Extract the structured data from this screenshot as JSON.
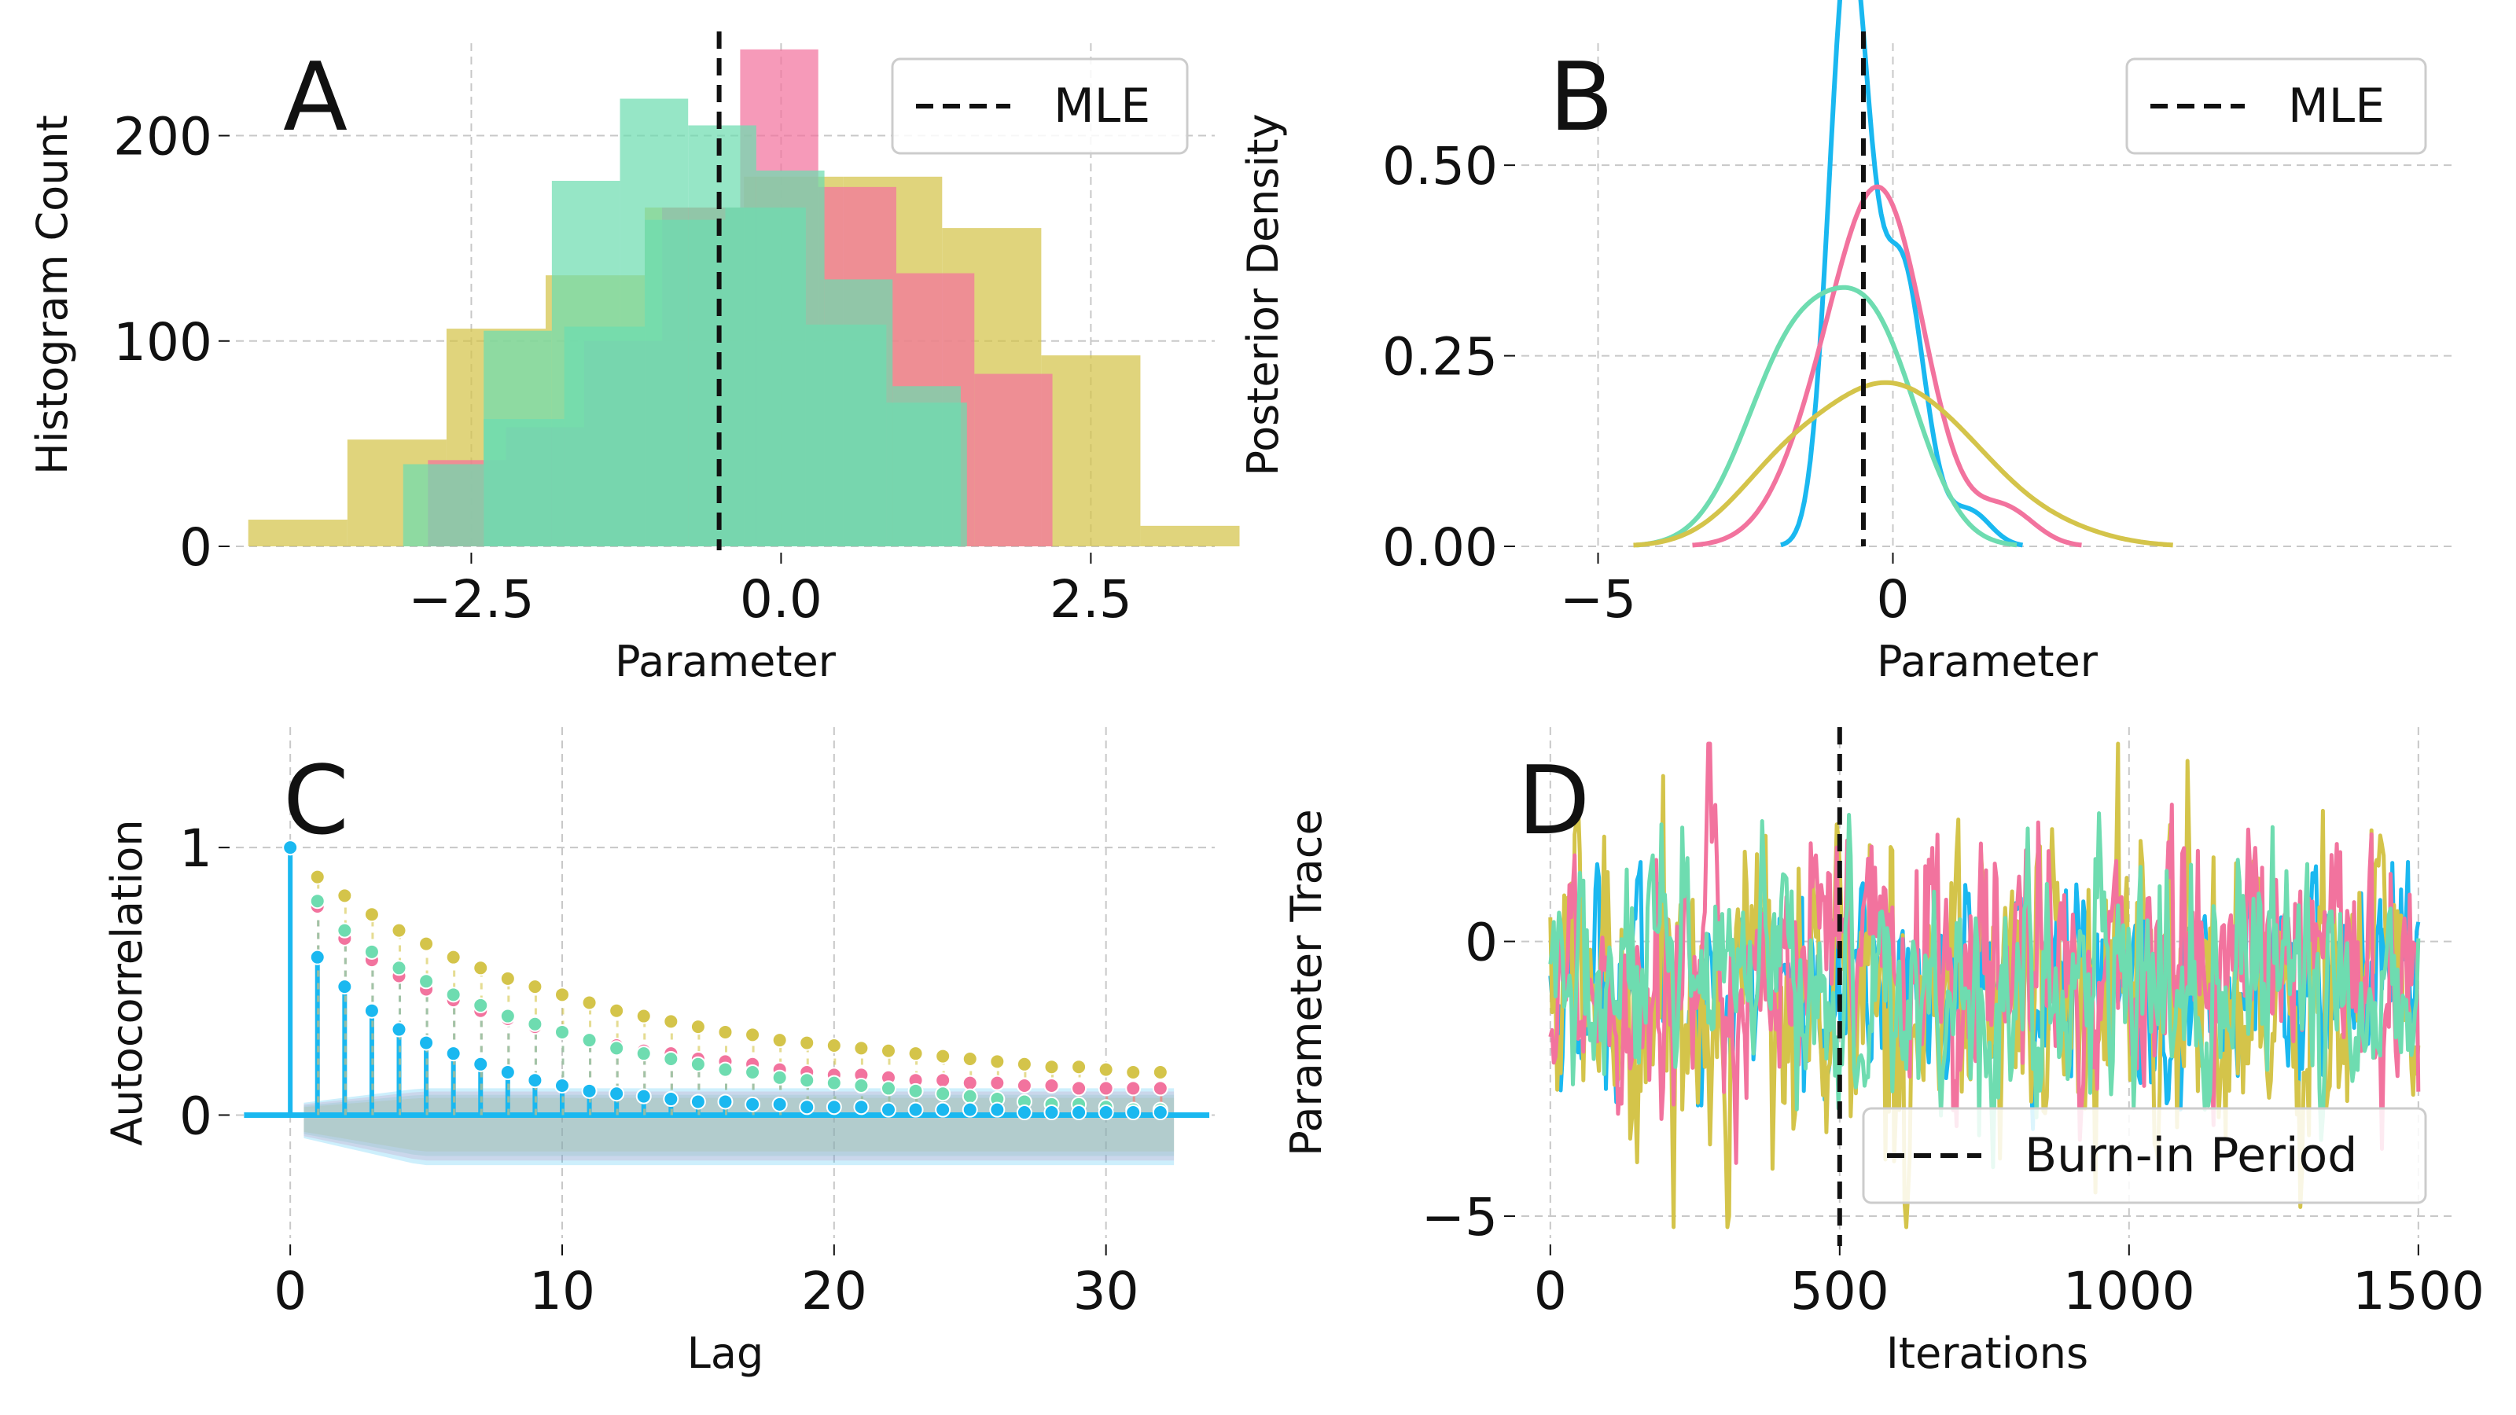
{
  "colors": {
    "blue": "#1ab8f0",
    "pink": "#f2739e",
    "olive": "#d4c44a",
    "teal": "#6edcb0",
    "black": "#111111"
  },
  "chart_data": [
    {
      "panel": "A",
      "type": "bar",
      "xlabel": "Parameter",
      "ylabel": "Histogram Count",
      "xlim": [
        -4.4,
        3.5
      ],
      "ylim": [
        0,
        245
      ],
      "xticks": [
        "−2.5",
        "0.0",
        "2.5"
      ],
      "xtick_values": [
        -2.5,
        0.0,
        2.5
      ],
      "yticks": [
        "0",
        "100",
        "200"
      ],
      "ytick_values": [
        0,
        100,
        200
      ],
      "legend": {
        "entries": [
          "MLE"
        ],
        "location": "upper right"
      },
      "vline": {
        "x": -0.5,
        "label": "MLE"
      },
      "series": [
        {
          "color": "olive",
          "edges": [
            -4.3,
            -3.5,
            -2.7,
            -1.9,
            -1.1,
            -0.3,
            0.5,
            1.3,
            2.1,
            2.9,
            3.7
          ],
          "values": [
            13,
            52,
            106,
            132,
            165,
            180,
            180,
            155,
            93,
            10,
            5
          ]
        },
        {
          "color": "pink",
          "edges": [
            -2.85,
            -2.22,
            -1.59,
            -0.96,
            -0.33,
            0.3,
            0.93,
            1.56,
            2.19
          ],
          "values": [
            42,
            58,
            100,
            165,
            242,
            175,
            133,
            84,
            15
          ]
        },
        {
          "color": "teal",
          "edges": [
            -3.05,
            -2.4,
            -1.75,
            -1.1,
            -0.45,
            0.2,
            0.85,
            1.5
          ],
          "values": [
            40,
            62,
            107,
            159,
            165,
            108,
            70,
            42
          ]
        },
        {
          "color": "teal",
          "edges": [
            -2.4,
            -1.85,
            -1.3,
            -0.75,
            -0.2,
            0.35,
            0.9,
            1.45
          ],
          "values": [
            105,
            178,
            218,
            205,
            183,
            130,
            78,
            42
          ]
        }
      ]
    },
    {
      "panel": "B",
      "type": "line",
      "xlabel": "Parameter",
      "ylabel": "Posterior Density",
      "xlim": [
        -6.3,
        9.5
      ],
      "ylim": [
        0,
        0.66
      ],
      "xticks": [
        "−5",
        "0"
      ],
      "xtick_values": [
        -5,
        0
      ],
      "yticks": [
        "0.00",
        "0.25",
        "0.50"
      ],
      "ytick_values": [
        0.0,
        0.25,
        0.5
      ],
      "legend": {
        "entries": [
          "MLE"
        ],
        "location": "upper right"
      },
      "vline": {
        "x": -0.5,
        "label": "MLE"
      },
      "series": [
        {
          "color": "blue",
          "components": [
            [
              0.65,
              -0.75,
              0.33
            ],
            [
              0.35,
              0.15,
              0.38
            ],
            [
              0.04,
              1.3,
              0.35
            ]
          ],
          "scale": 1.0
        },
        {
          "color": "pink",
          "components": [
            [
              0.6,
              -0.05,
              0.7
            ],
            [
              0.4,
              -0.9,
              0.8
            ],
            [
              0.06,
              1.9,
              0.5
            ]
          ],
          "scale": 1.0
        },
        {
          "color": "teal",
          "components": [
            [
              0.55,
              -1.65,
              0.85
            ],
            [
              0.45,
              -0.25,
              0.75
            ]
          ],
          "scale": 1.0
        },
        {
          "color": "olive",
          "components": [
            [
              0.4,
              -0.2,
              0.95
            ],
            [
              0.22,
              -1.8,
              0.9
            ],
            [
              0.2,
              1.2,
              0.9
            ],
            [
              0.05,
              2.7,
              0.9
            ]
          ],
          "scale": 1.0
        }
      ]
    },
    {
      "panel": "C",
      "type": "scatter",
      "xlabel": "Lag",
      "ylabel": "Autocorrelation",
      "xlim": [
        -2,
        34
      ],
      "ylim": [
        -0.46,
        1.45
      ],
      "xticks": [
        "0",
        "10",
        "20",
        "30"
      ],
      "xtick_values": [
        0,
        10,
        20,
        30
      ],
      "yticks": [
        "0",
        "1"
      ],
      "ytick_values": [
        0,
        1
      ],
      "lags": 32,
      "series": [
        {
          "color": "olive",
          "values": [
            1.0,
            0.89,
            0.82,
            0.75,
            0.69,
            0.64,
            0.59,
            0.55,
            0.51,
            0.48,
            0.45,
            0.42,
            0.39,
            0.37,
            0.35,
            0.33,
            0.31,
            0.3,
            0.28,
            0.27,
            0.26,
            0.25,
            0.24,
            0.23,
            0.22,
            0.21,
            0.2,
            0.19,
            0.18,
            0.18,
            0.17,
            0.16,
            0.16
          ]
        },
        {
          "color": "pink",
          "values": [
            1.0,
            0.78,
            0.66,
            0.58,
            0.52,
            0.47,
            0.43,
            0.39,
            0.36,
            0.33,
            0.31,
            0.28,
            0.26,
            0.24,
            0.23,
            0.21,
            0.2,
            0.19,
            0.17,
            0.16,
            0.15,
            0.15,
            0.14,
            0.13,
            0.13,
            0.12,
            0.12,
            0.11,
            0.11,
            0.1,
            0.1,
            0.1,
            0.1
          ]
        },
        {
          "color": "teal",
          "values": [
            1.0,
            0.8,
            0.69,
            0.61,
            0.55,
            0.5,
            0.45,
            0.41,
            0.37,
            0.34,
            0.31,
            0.28,
            0.25,
            0.23,
            0.21,
            0.19,
            0.17,
            0.16,
            0.14,
            0.13,
            0.12,
            0.11,
            0.1,
            0.09,
            0.08,
            0.07,
            0.06,
            0.05,
            0.04,
            0.04,
            0.03,
            0.02,
            0.02
          ]
        },
        {
          "color": "blue",
          "values": [
            1.0,
            0.59,
            0.48,
            0.39,
            0.32,
            0.27,
            0.23,
            0.19,
            0.16,
            0.13,
            0.11,
            0.09,
            0.08,
            0.07,
            0.06,
            0.05,
            0.05,
            0.04,
            0.04,
            0.03,
            0.03,
            0.03,
            0.02,
            0.02,
            0.02,
            0.02,
            0.02,
            0.01,
            0.01,
            0.01,
            0.01,
            0.01,
            0.01
          ]
        }
      ],
      "confidence_band": {
        "upper": 0.08,
        "lower": -0.17
      }
    },
    {
      "panel": "D",
      "type": "line",
      "xlabel": "Iterations",
      "ylabel": "Parameter Trace",
      "xlim": [
        -50,
        1560
      ],
      "ylim": [
        -5.4,
        3.9
      ],
      "xticks": [
        "0",
        "500",
        "1000",
        "1500"
      ],
      "xtick_values": [
        0,
        500,
        1000,
        1500
      ],
      "yticks": [
        "−5",
        "0"
      ],
      "ytick_values": [
        -5,
        0
      ],
      "legend": {
        "entries": [
          "Burn-in Period"
        ],
        "location": "lower right"
      },
      "vline": {
        "x": 500,
        "label": "Burn-in Period"
      },
      "n_iterations": 1500,
      "series": [
        {
          "color": "blue",
          "mean": -0.8,
          "sd": 1.0
        },
        {
          "color": "olive",
          "mean": -0.9,
          "sd": 1.7
        },
        {
          "color": "pink",
          "mean": -0.5,
          "sd": 1.35
        },
        {
          "color": "teal",
          "mean": -0.9,
          "sd": 1.15
        }
      ]
    }
  ]
}
